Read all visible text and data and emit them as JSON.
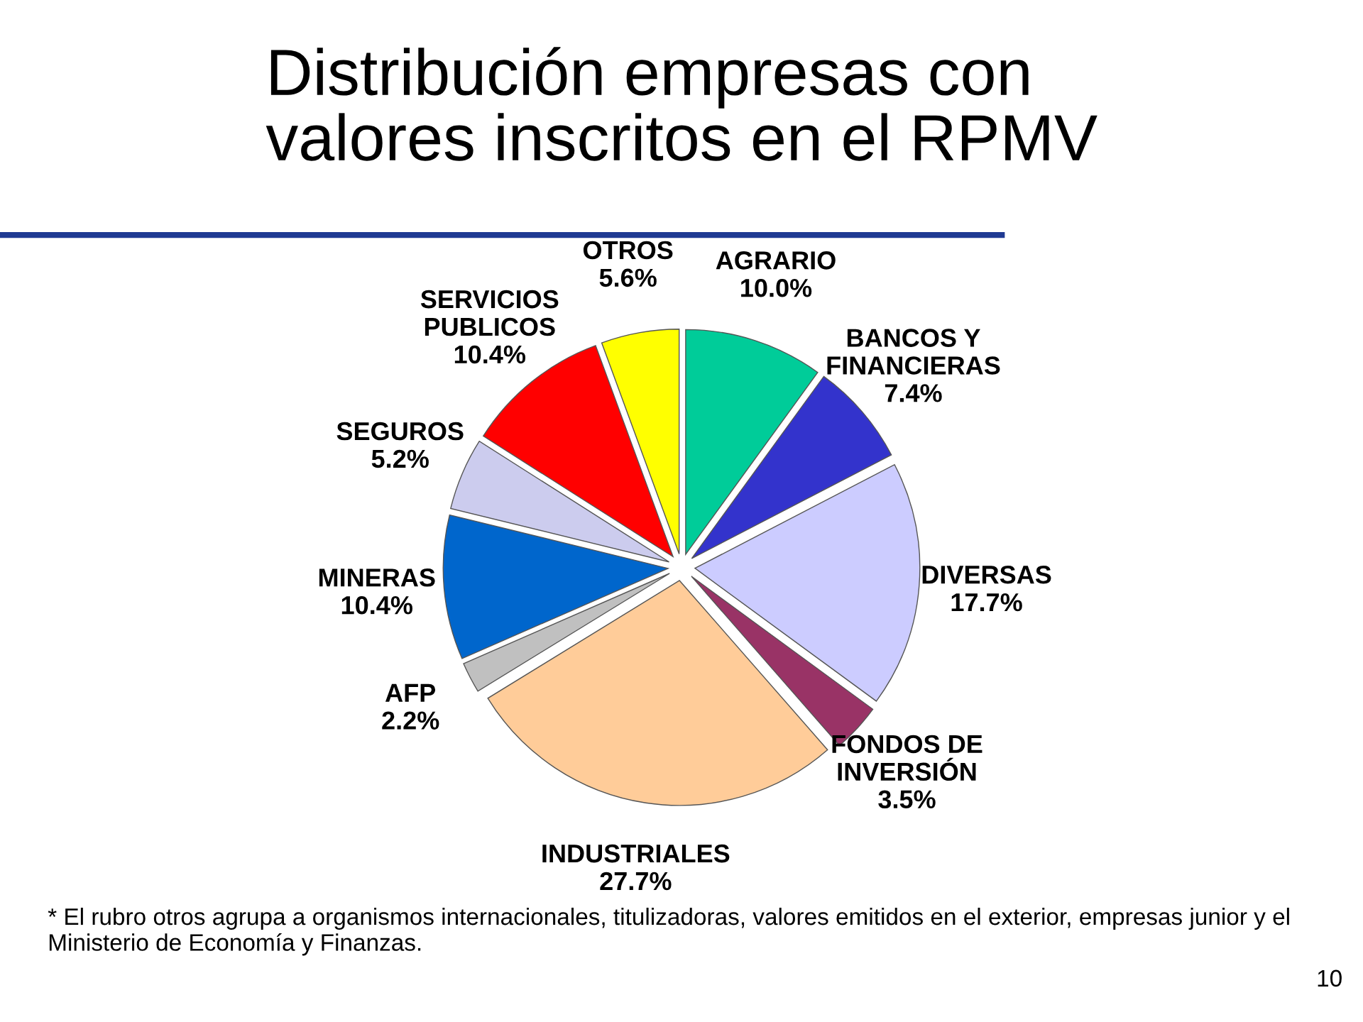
{
  "chart_data": {
    "type": "pie",
    "title": "Distribución empresas con\nvalores inscritos en el RPMV",
    "categories": [
      "AGRARIO",
      "BANCOS Y\nFINANCIERAS",
      "DIVERSAS",
      "FONDOS DE\nINVERSIÓN",
      "INDUSTRIALES",
      "AFP",
      "MINERAS",
      "SEGUROS",
      "SERVICIOS\nPUBLICOS",
      "OTROS"
    ],
    "values": [
      10.0,
      7.4,
      17.7,
      3.5,
      27.7,
      2.2,
      10.4,
      5.2,
      10.4,
      5.6
    ],
    "value_labels": [
      "10.0%",
      "7.4%",
      "17.7%",
      "3.5%",
      "27.7%",
      "2.2%",
      "10.4%",
      "5.2%",
      "10.4%",
      "5.6%"
    ],
    "colors": [
      "#00cc99",
      "#3333cc",
      "#ccccff",
      "#993366",
      "#ffcc99",
      "#c0c0c0",
      "#0066cc",
      "#ccccee",
      "#ff0000",
      "#ffff00"
    ],
    "annotations": [
      "* El rubro otros agrupa a organismos internacionales, titulizadoras, valores emitidos en el exterior, empresas junior y el Ministerio de Economía y Finanzas.",
      "10"
    ]
  }
}
